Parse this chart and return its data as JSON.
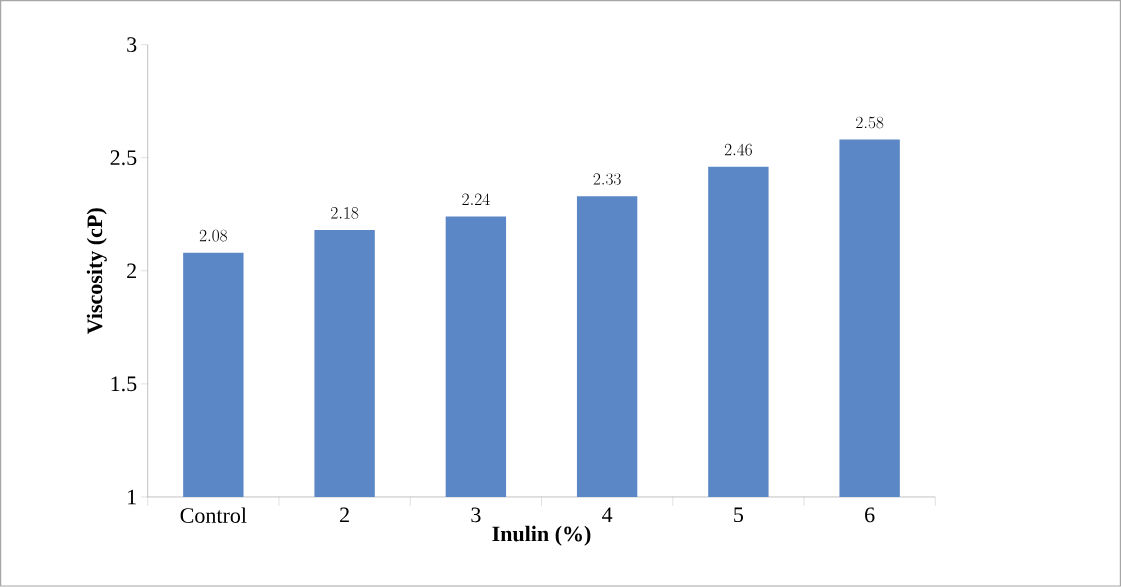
{
  "chart_data": {
    "type": "bar",
    "xlabel": "Inulin (%)",
    "ylabel": "Viscosity (cP)",
    "categories": [
      "Control",
      "2",
      "3",
      "4",
      "5",
      "6"
    ],
    "values": [
      2.08,
      2.18,
      2.24,
      2.33,
      2.46,
      2.58
    ],
    "color": "#5b87c6",
    "ylim": [
      1,
      3
    ],
    "yticks": [
      1,
      1.5,
      2,
      2.5,
      3
    ],
    "data_labels": true,
    "grid": false
  }
}
